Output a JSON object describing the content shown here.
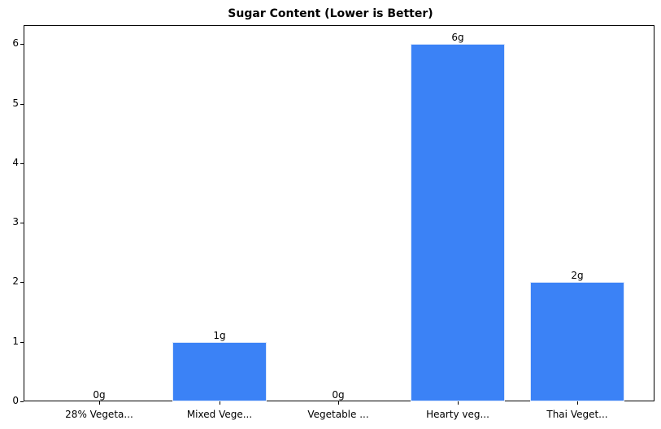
{
  "chart_data": {
    "type": "bar",
    "title": "Sugar Content (Lower is Better)",
    "xlabel": "",
    "ylabel": "",
    "categories": [
      "28% Vegeta...",
      "Mixed Vege...",
      "Vegetable ...",
      "Hearty veg...",
      "Thai Veget..."
    ],
    "values": [
      0,
      1,
      0,
      6,
      2
    ],
    "data_labels": [
      "0g",
      "1g",
      "0g",
      "6g",
      "2g"
    ],
    "ylim": [
      0,
      6.3
    ],
    "yticks": [
      0,
      1,
      2,
      3,
      4,
      5,
      6
    ],
    "grid": false,
    "bar_color": "#3b82f6"
  }
}
